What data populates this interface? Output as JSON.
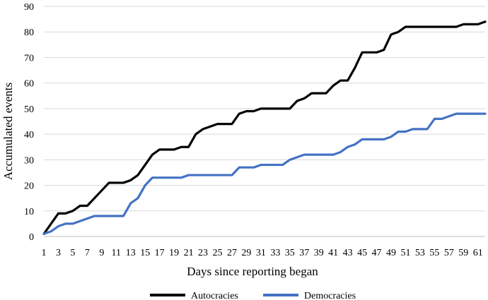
{
  "chart_data": {
    "type": "line",
    "xlabel": "Days since reporting began",
    "ylabel": "Accumulated events",
    "ylim": [
      0,
      90
    ],
    "y_ticks": [
      0,
      10,
      20,
      30,
      40,
      50,
      60,
      70,
      80,
      90
    ],
    "x_range": [
      1,
      62
    ],
    "x_tick_labels": [
      "1",
      "3",
      "5",
      "7",
      "9",
      "11",
      "13",
      "15",
      "17",
      "19",
      "21",
      "23",
      "25",
      "27",
      "29",
      "31",
      "33",
      "35",
      "37",
      "39",
      "41",
      "43",
      "45",
      "47",
      "49",
      "51",
      "53",
      "55",
      "57",
      "59",
      "61"
    ],
    "grid": "horizontal",
    "legend_position": "bottom",
    "x": [
      1,
      2,
      3,
      4,
      5,
      6,
      7,
      8,
      9,
      10,
      11,
      12,
      13,
      14,
      15,
      16,
      17,
      18,
      19,
      20,
      21,
      22,
      23,
      24,
      25,
      26,
      27,
      28,
      29,
      30,
      31,
      32,
      33,
      34,
      35,
      36,
      37,
      38,
      39,
      40,
      41,
      42,
      43,
      44,
      45,
      46,
      47,
      48,
      49,
      50,
      51,
      52,
      53,
      54,
      55,
      56,
      57,
      58,
      59,
      60,
      61,
      62
    ],
    "series": [
      {
        "name": "Autocracies",
        "color": "#000000",
        "values": [
          1,
          5,
          9,
          9,
          10,
          12,
          12,
          15,
          18,
          21,
          21,
          21,
          22,
          24,
          28,
          32,
          34,
          34,
          34,
          35,
          35,
          40,
          42,
          43,
          44,
          44,
          44,
          48,
          49,
          49,
          50,
          50,
          50,
          50,
          50,
          53,
          54,
          56,
          56,
          56,
          59,
          61,
          61,
          66,
          72,
          72,
          72,
          73,
          79,
          80,
          82,
          82,
          82,
          82,
          82,
          82,
          82,
          82,
          83,
          83,
          83,
          84
        ]
      },
      {
        "name": "Democracies",
        "color": "#4472C4",
        "values": [
          1,
          2,
          4,
          5,
          5,
          6,
          7,
          8,
          8,
          8,
          8,
          8,
          13,
          15,
          20,
          23,
          23,
          23,
          23,
          23,
          24,
          24,
          24,
          24,
          24,
          24,
          24,
          27,
          27,
          27,
          28,
          28,
          28,
          28,
          30,
          31,
          32,
          32,
          32,
          32,
          32,
          33,
          35,
          36,
          38,
          38,
          38,
          38,
          39,
          41,
          41,
          42,
          42,
          42,
          46,
          46,
          47,
          48,
          48,
          48,
          48,
          48
        ]
      }
    ]
  }
}
